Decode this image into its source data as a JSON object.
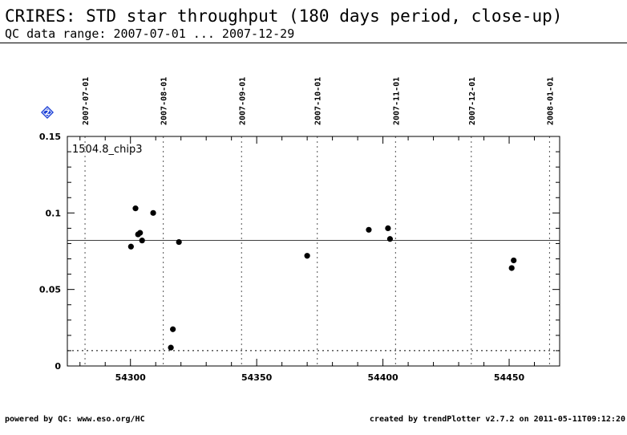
{
  "header": {
    "title": "CRIRES: STD star throughput (180 days period, close-up)",
    "subtitle": "QC data range: 2007-07-01 ... 2007-12-29"
  },
  "footer": {
    "left": "powered by QC: www.eso.org/HC",
    "right": "created by trendPlotter v2.7.2 on 2011-05-11T09:12:20"
  },
  "badge": {
    "label": "2",
    "icon": "diamond-badge-icon",
    "color": "#1a3fd6"
  },
  "chart_data": {
    "type": "scatter",
    "panel_label": "1504.8_chip3",
    "xlim": [
      54275,
      54470
    ],
    "ylim": [
      0,
      0.15
    ],
    "x_ticks": [
      54300,
      54350,
      54400,
      54450
    ],
    "x_tick_labels": [
      "54300",
      "54350",
      "54400",
      "54450"
    ],
    "y_ticks": [
      0,
      0.05,
      0.1,
      0.15
    ],
    "y_tick_labels": [
      "0",
      "0.05",
      "0.1",
      "0.15"
    ],
    "top_axis_dates": [
      {
        "mjd": 54282,
        "label": "2007-07-01"
      },
      {
        "mjd": 54313,
        "label": "2007-08-01"
      },
      {
        "mjd": 54344,
        "label": "2007-09-01"
      },
      {
        "mjd": 54374,
        "label": "2007-10-01"
      },
      {
        "mjd": 54405,
        "label": "2007-11-01"
      },
      {
        "mjd": 54435,
        "label": "2007-12-01"
      },
      {
        "mjd": 54466,
        "label": "2008-01-01"
      }
    ],
    "reference_line": 0.082,
    "threshold_line": 0.01,
    "points": [
      {
        "x": 54300.2,
        "y": 0.078
      },
      {
        "x": 54302.0,
        "y": 0.103
      },
      {
        "x": 54303.0,
        "y": 0.086
      },
      {
        "x": 54303.8,
        "y": 0.087
      },
      {
        "x": 54304.6,
        "y": 0.082
      },
      {
        "x": 54309.0,
        "y": 0.1
      },
      {
        "x": 54316.0,
        "y": 0.012
      },
      {
        "x": 54316.8,
        "y": 0.024
      },
      {
        "x": 54319.2,
        "y": 0.081
      },
      {
        "x": 54370.0,
        "y": 0.072
      },
      {
        "x": 54394.4,
        "y": 0.089
      },
      {
        "x": 54402.0,
        "y": 0.09
      },
      {
        "x": 54402.8,
        "y": 0.083
      },
      {
        "x": 54451.0,
        "y": 0.064
      },
      {
        "x": 54451.8,
        "y": 0.069
      }
    ],
    "colors": {
      "points": "#000000",
      "grid": "#555555",
      "axes": "#000000"
    }
  }
}
